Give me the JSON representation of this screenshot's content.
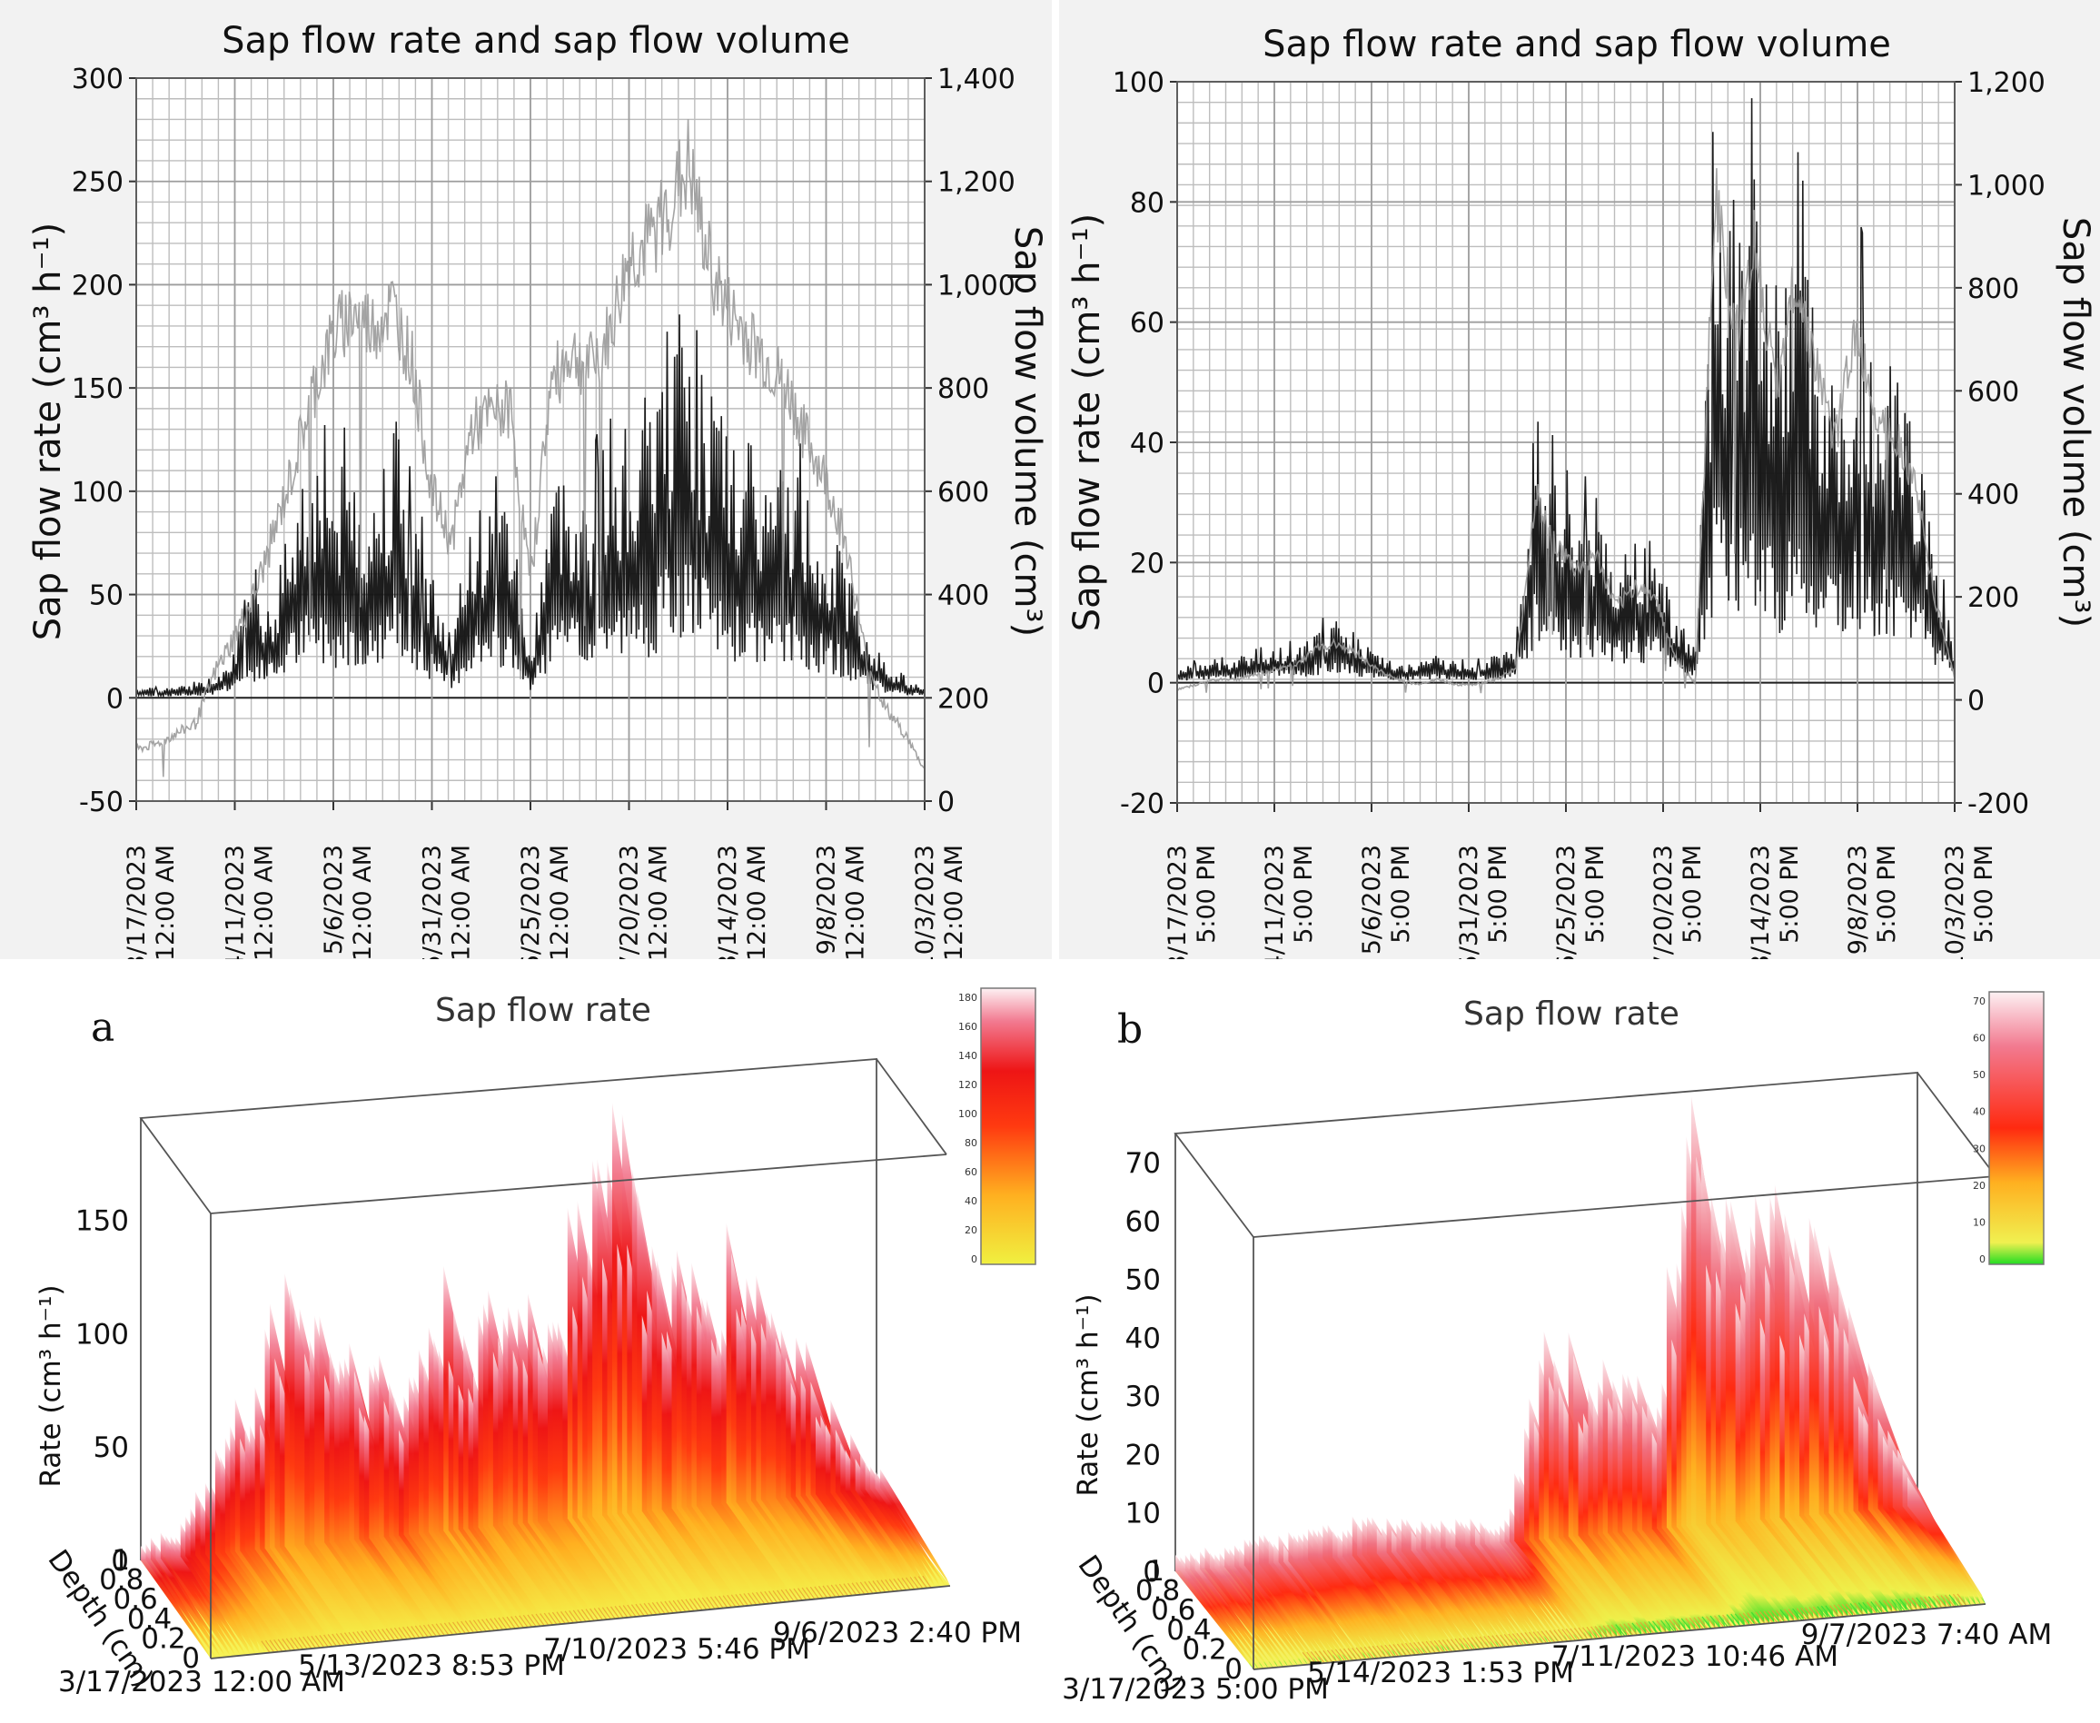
{
  "chart_data": [
    {
      "id": "top-left",
      "type": "line",
      "title": "Sap flow rate and sap flow volume",
      "ylabel": "Sap flow rate (cm³ h⁻¹)",
      "y2label": "Sap flow volume (cm³)",
      "ylim": [
        -50,
        300
      ],
      "yticks": [
        "300",
        "250",
        "200",
        "150",
        "100",
        "50",
        "0",
        "-50"
      ],
      "y2lim": [
        0,
        1400
      ],
      "y2ticks": [
        "1,400",
        "1,200",
        "1,000",
        "800",
        "600",
        "400",
        "200",
        "0"
      ],
      "xticks": [
        [
          "3/17/2023",
          "12:00 AM"
        ],
        [
          "4/11/2023",
          "12:00 AM"
        ],
        [
          "5/6/2023",
          "12:00 AM"
        ],
        [
          "5/31/2023",
          "12:00 AM"
        ],
        [
          "6/25/2023",
          "12:00 AM"
        ],
        [
          "7/20/2023",
          "12:00 AM"
        ],
        [
          "8/14/2023",
          "12:00 AM"
        ],
        [
          "9/8/2023",
          "12:00 AM"
        ],
        [
          "10/3/2023",
          "12:00 AM"
        ]
      ],
      "series": [
        {
          "name": "Sap flow rate",
          "color": "#111111",
          "x": [
            0,
            5,
            10,
            15,
            20,
            25,
            30,
            35,
            40,
            45,
            50,
            55,
            60,
            65,
            70,
            75,
            80,
            85,
            90,
            95,
            100,
            105,
            110,
            115,
            120,
            125,
            130,
            135,
            140,
            145,
            150,
            155,
            160,
            165,
            170,
            175,
            180,
            185,
            190,
            195,
            200
          ],
          "values": [
            5,
            4,
            5,
            6,
            10,
            25,
            48,
            45,
            90,
            110,
            95,
            105,
            85,
            130,
            80,
            55,
            20,
            85,
            80,
            90,
            15,
            95,
            100,
            85,
            120,
            115,
            130,
            160,
            175,
            140,
            115,
            110,
            95,
            105,
            90,
            75,
            60,
            30,
            15,
            8,
            5
          ]
        },
        {
          "name": "Sap flow volume",
          "color": "#9a9a9a",
          "x": [
            0,
            5,
            10,
            15,
            20,
            25,
            30,
            35,
            40,
            45,
            50,
            55,
            60,
            65,
            70,
            75,
            80,
            85,
            90,
            95,
            100,
            105,
            110,
            115,
            120,
            125,
            130,
            135,
            140,
            145,
            150,
            155,
            160,
            165,
            170,
            175,
            180,
            185,
            190,
            195,
            200
          ],
          "values": [
            100,
            110,
            130,
            150,
            250,
            320,
            400,
            520,
            650,
            800,
            900,
            950,
            920,
            960,
            850,
            600,
            500,
            720,
            750,
            760,
            420,
            800,
            870,
            840,
            900,
            1050,
            1080,
            1150,
            1230,
            1050,
            950,
            900,
            850,
            800,
            700,
            620,
            500,
            280,
            180,
            130,
            60
          ]
        }
      ]
    },
    {
      "id": "top-right",
      "type": "line",
      "title": "Sap flow rate and sap flow volume",
      "ylabel": "Sap flow rate (cm³ h⁻¹)",
      "y2label": "Sap flow volume (cm³)",
      "ylim": [
        -20,
        100
      ],
      "yticks": [
        "100",
        "80",
        "60",
        "40",
        "20",
        "0",
        "-20"
      ],
      "y2lim": [
        -200,
        1200
      ],
      "y2ticks": [
        "1,200",
        "1,000",
        "800",
        "600",
        "400",
        "200",
        "0",
        "-200"
      ],
      "xticks": [
        [
          "3/17/2023",
          "5:00 PM"
        ],
        [
          "4/11/2023",
          "5:00 PM"
        ],
        [
          "5/6/2023",
          "5:00 PM"
        ],
        [
          "5/31/2023",
          "5:00 PM"
        ],
        [
          "6/25/2023",
          "5:00 PM"
        ],
        [
          "7/20/2023",
          "5:00 PM"
        ],
        [
          "8/14/2023",
          "5:00 PM"
        ],
        [
          "9/8/2023",
          "5:00 PM"
        ],
        [
          "10/3/2023",
          "5:00 PM"
        ]
      ],
      "series": [
        {
          "name": "Sap flow rate",
          "color": "#111111",
          "x": [
            0,
            5,
            10,
            15,
            20,
            25,
            30,
            35,
            40,
            45,
            50,
            55,
            60,
            65,
            70,
            75,
            80,
            85,
            90,
            95,
            100,
            105,
            110,
            115,
            120,
            125,
            130,
            135,
            140,
            145,
            150,
            155,
            160,
            165,
            170,
            175,
            180,
            185,
            190,
            195
          ],
          "values": [
            2,
            3,
            3,
            4,
            5,
            6,
            5,
            8,
            9,
            7,
            4,
            3,
            3,
            4,
            3,
            3,
            4,
            5,
            40,
            30,
            25,
            28,
            18,
            22,
            20,
            10,
            5,
            80,
            60,
            78,
            50,
            70,
            55,
            45,
            62,
            50,
            48,
            40,
            20,
            5
          ]
        },
        {
          "name": "Sap flow volume",
          "color": "#9a9a9a",
          "x": [
            0,
            5,
            10,
            15,
            20,
            25,
            30,
            35,
            40,
            45,
            50,
            55,
            60,
            65,
            70,
            75,
            80,
            85,
            90,
            95,
            100,
            105,
            110,
            115,
            120,
            125,
            130,
            135,
            140,
            145,
            150,
            155,
            160,
            165,
            170,
            175,
            180,
            185,
            190,
            195
          ],
          "values": [
            20,
            30,
            40,
            40,
            50,
            60,
            70,
            100,
            110,
            90,
            60,
            40,
            30,
            40,
            30,
            30,
            40,
            60,
            400,
            300,
            250,
            280,
            180,
            220,
            200,
            80,
            30,
            1000,
            700,
            900,
            600,
            820,
            650,
            500,
            720,
            560,
            520,
            420,
            200,
            40
          ]
        }
      ]
    },
    {
      "id": "bottom-a",
      "type": "area",
      "panel_label": "a",
      "title": "Sap flow rate",
      "zlabel": "Rate (cm³ h⁻¹)",
      "ylabel": "Depth (cm)",
      "zticks": [
        "0",
        "50",
        "100",
        "150"
      ],
      "depth_ticks": [
        "0",
        "0.2",
        "0.4",
        "0.6",
        "0.8",
        "1"
      ],
      "dates": [
        "3/17/2023 12:00 AM",
        "5/13/2023 8:53 PM",
        "7/10/2023 5:46 PM",
        "9/6/2023 2:40 PM"
      ],
      "colorbar": {
        "min": 0,
        "max": 180,
        "ticks": [
          "180",
          "160",
          "140",
          "120",
          "100",
          "80",
          "60",
          "40",
          "20",
          "0"
        ]
      },
      "peaks_x": [
        0.0,
        0.05,
        0.1,
        0.15,
        0.2,
        0.25,
        0.3,
        0.35,
        0.4,
        0.45,
        0.5,
        0.55,
        0.6,
        0.65,
        0.7,
        0.75,
        0.8,
        0.85,
        0.9,
        0.95,
        1.0
      ],
      "peaks": [
        8,
        15,
        50,
        85,
        140,
        110,
        95,
        70,
        120,
        100,
        110,
        115,
        175,
        190,
        120,
        110,
        130,
        100,
        70,
        30,
        10
      ]
    },
    {
      "id": "bottom-b",
      "type": "area",
      "panel_label": "b",
      "title": "Sap flow rate",
      "zlabel": "Rate (cm³ h⁻¹)",
      "ylabel": "Depth (cm)",
      "zticks": [
        "0",
        "10",
        "20",
        "30",
        "40",
        "50",
        "60",
        "70"
      ],
      "depth_ticks": [
        "0",
        "0.2",
        "0.4",
        "0.6",
        "0.8",
        "1"
      ],
      "dates": [
        "3/17/2023 5:00 PM",
        "5/14/2023 1:53 PM",
        "7/11/2023 10:46 AM",
        "9/7/2023 7:40 AM"
      ],
      "colorbar": {
        "min": 0,
        "max": 70,
        "ticks": [
          "70",
          "60",
          "50",
          "40",
          "30",
          "20",
          "10",
          "0"
        ]
      },
      "peaks_x": [
        0.0,
        0.05,
        0.1,
        0.15,
        0.2,
        0.25,
        0.3,
        0.35,
        0.4,
        0.45,
        0.5,
        0.55,
        0.6,
        0.65,
        0.7,
        0.75,
        0.8,
        0.85,
        0.9,
        0.95,
        1.0
      ],
      "peaks": [
        3,
        4,
        5,
        5,
        6,
        7,
        6,
        5,
        5,
        4,
        40,
        35,
        30,
        25,
        75,
        72,
        60,
        55,
        45,
        25,
        8
      ]
    }
  ]
}
